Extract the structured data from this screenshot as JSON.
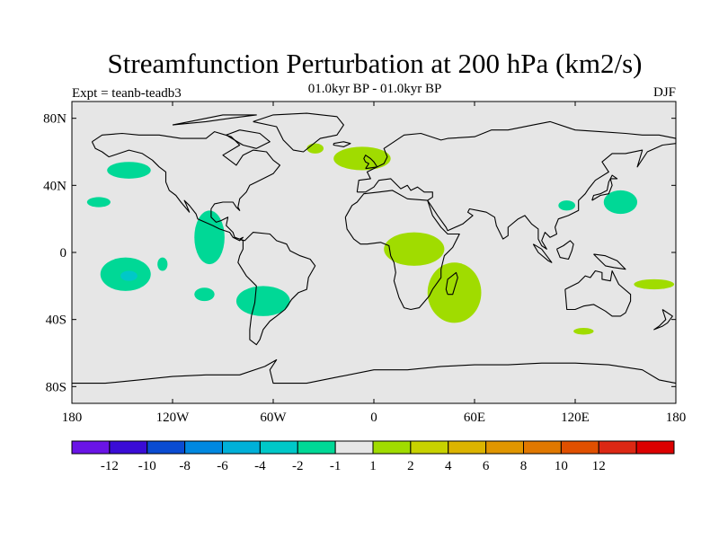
{
  "title": "Streamfunction Perturbation at 200 hPa (km2/s)",
  "left_label": "Expt = teanb-teadb3",
  "center_label": "01.0kyr BP - 01.0kyr BP",
  "right_label": "DJF",
  "map": {
    "projection": "cylindrical-equidistant",
    "lon_range": [
      -180,
      180
    ],
    "lat_range": [
      -90,
      90
    ],
    "background_color": "#e6e6e6",
    "lat_ticks": [
      {
        "lat": 80,
        "label": "80N"
      },
      {
        "lat": 40,
        "label": "40N"
      },
      {
        "lat": 0,
        "label": "0"
      },
      {
        "lat": -40,
        "label": "40S"
      },
      {
        "lat": -80,
        "label": "80S"
      }
    ],
    "lon_ticks": [
      {
        "lon": -180,
        "label": "180"
      },
      {
        "lon": -120,
        "label": "120W"
      },
      {
        "lon": -60,
        "label": "60W"
      },
      {
        "lon": 0,
        "label": "0"
      },
      {
        "lon": 60,
        "label": "60E"
      },
      {
        "lon": 120,
        "label": "120E"
      },
      {
        "lon": 180,
        "label": "180"
      }
    ]
  },
  "anomalies": [
    {
      "id": "npac-neg",
      "level": -2,
      "color": "#00d896",
      "lon": -146,
      "lat": 49,
      "dlon": 13,
      "dlat": 5
    },
    {
      "id": "epac-neg-west",
      "level": -2,
      "color": "#00d896",
      "lon": -164,
      "lat": 30,
      "dlon": 7,
      "dlat": 3
    },
    {
      "id": "central-america-neg",
      "level": -2,
      "color": "#00d896",
      "lon": -98,
      "lat": 9,
      "dlon": 9,
      "dlat": 16
    },
    {
      "id": "spac-neg-small",
      "level": -2,
      "color": "#00d896",
      "lon": -126,
      "lat": -7,
      "dlon": 3,
      "dlat": 4
    },
    {
      "id": "spac-neg",
      "level": -2,
      "color": "#00d896",
      "lon": -148,
      "lat": -13,
      "dlon": 15,
      "dlat": 10
    },
    {
      "id": "spac-neg-core",
      "level": -4,
      "color": "#00c8c8",
      "lon": -146,
      "lat": -14,
      "dlon": 5,
      "dlat": 3
    },
    {
      "id": "spac-neg-east",
      "level": -2,
      "color": "#00d896",
      "lon": -101,
      "lat": -25,
      "dlon": 6,
      "dlat": 4
    },
    {
      "id": "south-america-neg",
      "level": -2,
      "color": "#00d896",
      "lon": -66,
      "lat": -29,
      "dlon": 16,
      "dlat": 9
    },
    {
      "id": "wpac-neg",
      "level": -2,
      "color": "#00d896",
      "lon": 147,
      "lat": 30,
      "dlon": 10,
      "dlat": 7
    },
    {
      "id": "east-asia-neg",
      "level": -2,
      "color": "#00d896",
      "lon": 115,
      "lat": 28,
      "dlon": 5,
      "dlat": 3
    },
    {
      "id": "natl-pos",
      "level": 2,
      "color": "#a0dc00",
      "lon": -7,
      "lat": 56,
      "dlon": 17,
      "dlat": 7
    },
    {
      "id": "africa-pos",
      "level": 2,
      "color": "#a0dc00",
      "lon": 24,
      "lat": 2,
      "dlon": 18,
      "dlat": 10
    },
    {
      "id": "indian-ocean-pos",
      "level": 2,
      "color": "#a0dc00",
      "lon": 48,
      "lat": -24,
      "dlon": 16,
      "dlat": 18
    },
    {
      "id": "spac-pos-east",
      "level": 2,
      "color": "#a0dc00",
      "lon": 167,
      "lat": -19,
      "dlon": 12,
      "dlat": 3
    },
    {
      "id": "south-pos",
      "level": 2,
      "color": "#a0dc00",
      "lon": 125,
      "lat": -47,
      "dlon": 6,
      "dlat": 2
    },
    {
      "id": "natl-pos-small",
      "level": 2,
      "color": "#a0dc00",
      "lon": -35,
      "lat": 62,
      "dlon": 5,
      "dlat": 3
    }
  ],
  "colorbar": {
    "colors": [
      "#6a14e6",
      "#3a0cd6",
      "#0a4cd2",
      "#0088e0",
      "#00b0d8",
      "#00c8c8",
      "#00d896",
      "#e6e6e6",
      "#a0dc00",
      "#c8d200",
      "#dcb400",
      "#e09600",
      "#e07800",
      "#e05000",
      "#dc2814",
      "#dc0000"
    ],
    "labels": [
      "-12",
      "-10",
      "-8",
      "-6",
      "-4",
      "-2",
      "-1",
      "1",
      "2",
      "4",
      "6",
      "8",
      "10",
      "12"
    ]
  }
}
